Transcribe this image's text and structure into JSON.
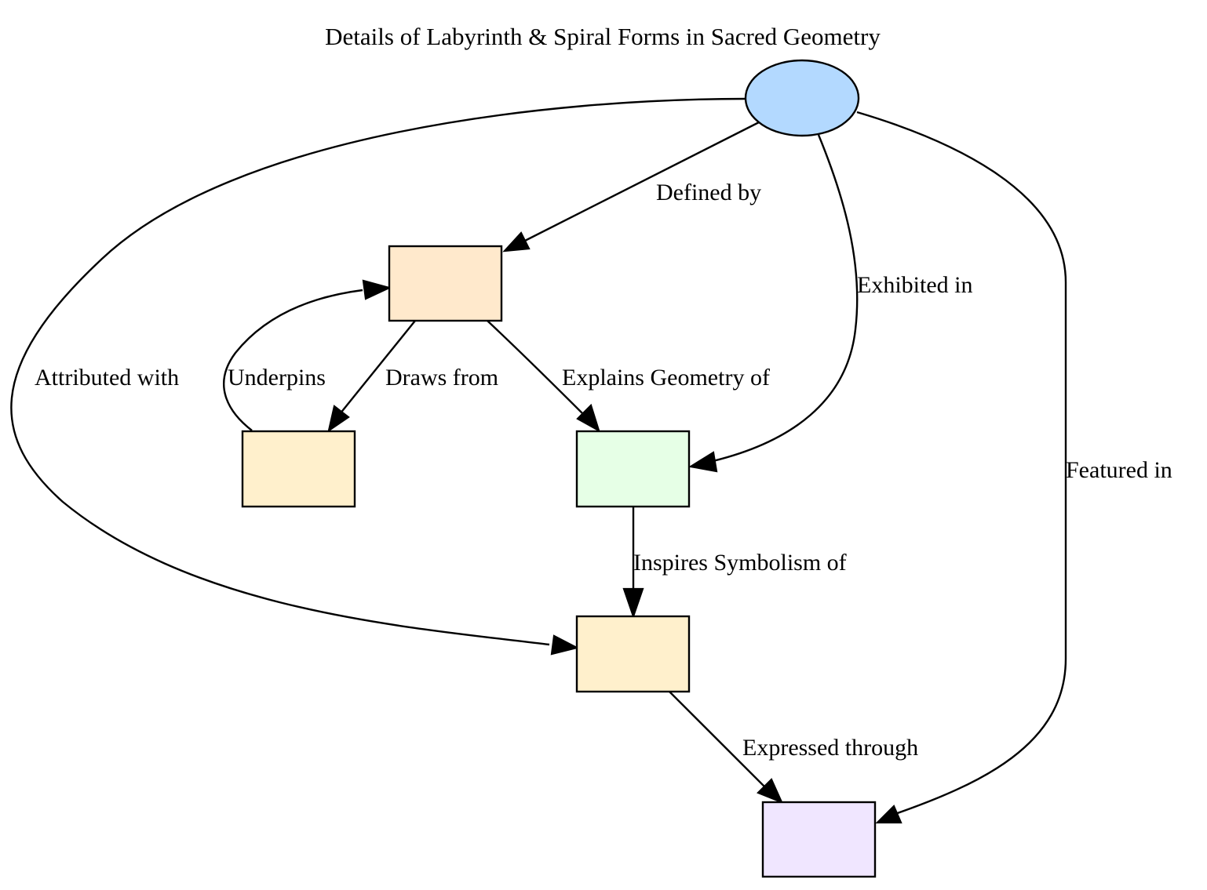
{
  "diagram": {
    "title": "Details of Labyrinth & Spiral Forms in Sacred Geometry",
    "nodes": [
      {
        "id": "root",
        "shape": "ellipse",
        "label": "",
        "fill": "#b3d9ff"
      },
      {
        "id": "mathematics",
        "shape": "box",
        "label": "",
        "fill": "#ffe9cc"
      },
      {
        "id": "tradition",
        "shape": "box",
        "label": "",
        "fill": "#fff0cc"
      },
      {
        "id": "natural-forms",
        "shape": "box",
        "label": "",
        "fill": "#e6ffe6"
      },
      {
        "id": "symbolism",
        "shape": "box",
        "label": "",
        "fill": "#fff0cc"
      },
      {
        "id": "art",
        "shape": "box",
        "label": "",
        "fill": "#f0e6ff"
      }
    ],
    "edges": [
      {
        "id": "defined-by",
        "from": "root",
        "to": "mathematics",
        "label": "Defined by"
      },
      {
        "id": "exhibited-in",
        "from": "root",
        "to": "natural-forms",
        "label": "Exhibited in"
      },
      {
        "id": "attributed-with",
        "from": "root",
        "to": "symbolism",
        "label": "Attributed with"
      },
      {
        "id": "featured-in",
        "from": "root",
        "to": "art",
        "label": "Featured in"
      },
      {
        "id": "underpins",
        "from": "tradition",
        "to": "mathematics",
        "label": "Underpins"
      },
      {
        "id": "draws-from",
        "from": "mathematics",
        "to": "tradition",
        "label": "Draws from"
      },
      {
        "id": "explains-geometry-of",
        "from": "mathematics",
        "to": "natural-forms",
        "label": "Explains Geometry of"
      },
      {
        "id": "inspires-symbolism-of",
        "from": "natural-forms",
        "to": "symbolism",
        "label": "Inspires Symbolism of"
      },
      {
        "id": "expressed-through",
        "from": "symbolism",
        "to": "art",
        "label": "Expressed through"
      }
    ]
  }
}
